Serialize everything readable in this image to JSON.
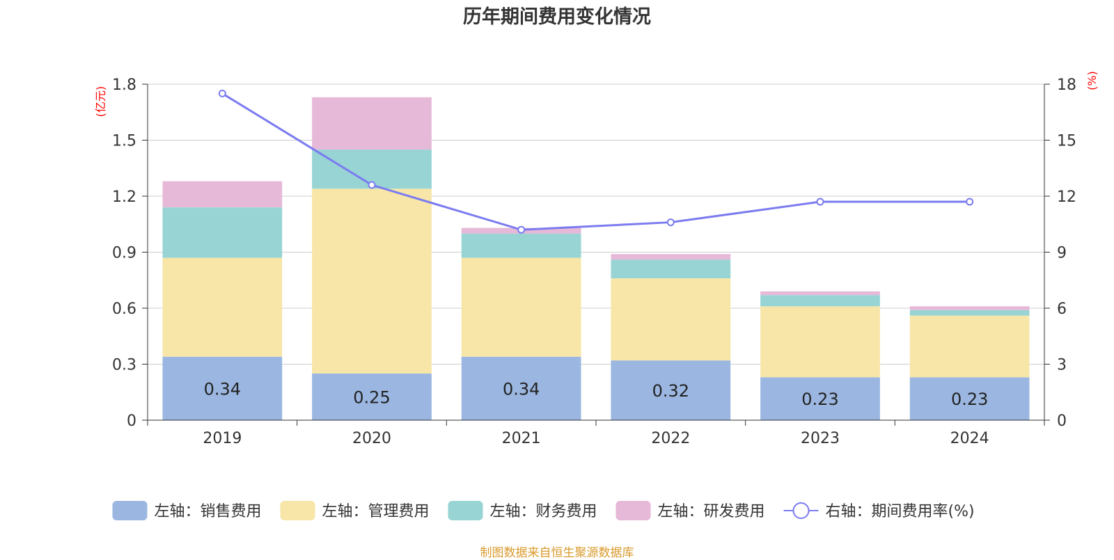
{
  "chart_data": {
    "type": "bar",
    "title": "历年期间费用变化情况",
    "categories": [
      "2019",
      "2020",
      "2021",
      "2022",
      "2023",
      "2024"
    ],
    "y_left": {
      "unit_label": "(亿元)",
      "min": 0,
      "max": 1.8,
      "ticks": [
        "0",
        "0.3",
        "0.6",
        "0.9",
        "1.2",
        "1.5",
        "1.8"
      ]
    },
    "y_right": {
      "unit_label": "(%)",
      "min": 0,
      "max": 18,
      "ticks": [
        "0",
        "3",
        "6",
        "9",
        "12",
        "15",
        "18"
      ]
    },
    "grid": true,
    "legend_position": "bottom",
    "series": [
      {
        "name": "左轴：销售费用",
        "type": "bar",
        "axis": "left",
        "color": "#9bb7e1",
        "values": [
          0.34,
          0.25,
          0.34,
          0.32,
          0.23,
          0.23
        ],
        "data_labels": [
          "0.34",
          "0.25",
          "0.34",
          "0.32",
          "0.23",
          "0.23"
        ]
      },
      {
        "name": "左轴：管理费用",
        "type": "bar",
        "axis": "left",
        "color": "#f7e6a8",
        "values": [
          0.53,
          0.99,
          0.53,
          0.44,
          0.38,
          0.33
        ]
      },
      {
        "name": "左轴：财务费用",
        "type": "bar",
        "axis": "left",
        "color": "#98d4d4",
        "values": [
          0.27,
          0.21,
          0.13,
          0.1,
          0.06,
          0.03
        ]
      },
      {
        "name": "左轴：研发费用",
        "type": "bar",
        "axis": "left",
        "color": "#e6b9d8",
        "values": [
          0.14,
          0.28,
          0.03,
          0.03,
          0.02,
          0.02
        ]
      },
      {
        "name": "右轴：期间费用率(%)",
        "type": "line",
        "axis": "right",
        "color": "#7b7bf0",
        "values": [
          17.5,
          12.6,
          10.2,
          10.6,
          11.7,
          11.7
        ]
      }
    ]
  },
  "source_text": "制图数据来自恒生聚源数据库"
}
